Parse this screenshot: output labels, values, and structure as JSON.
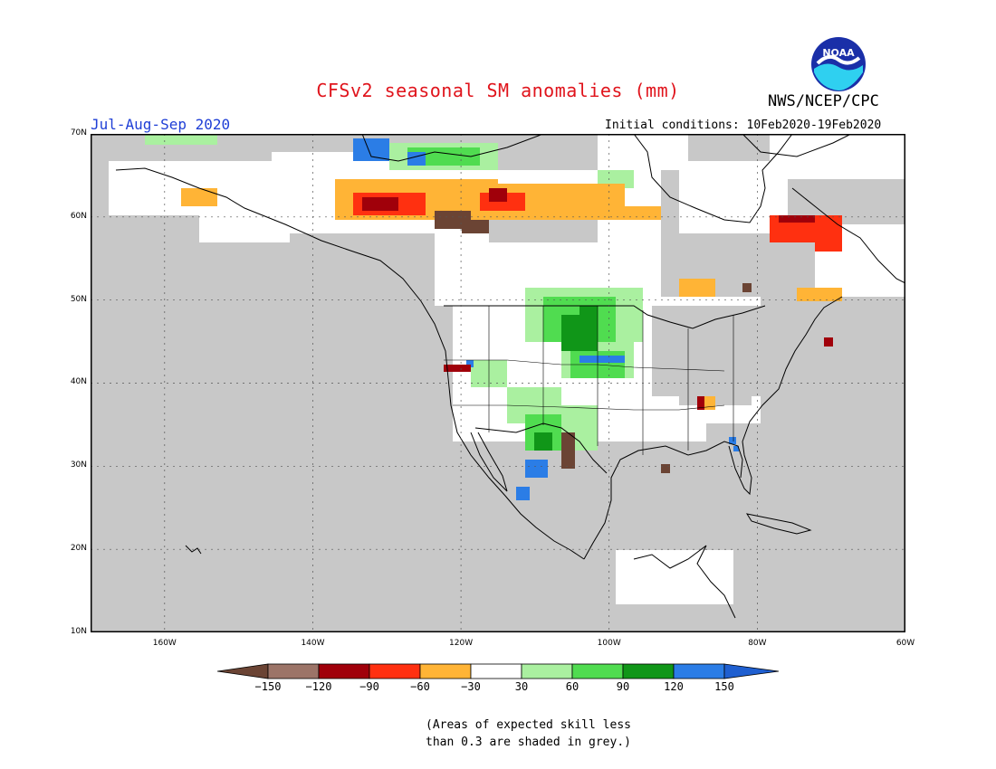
{
  "title": "CFSv2 seasonal SM anomalies (mm)",
  "period": "Jul-Aug-Sep 2020",
  "agency": "NWS/NCEP/CPC",
  "initial_conditions": "Initial conditions: 10Feb2020-19Feb2020",
  "logo_text": "NOAA",
  "logo_icon": "noaa-logo-icon",
  "lat_labels": [
    "70N",
    "60N",
    "50N",
    "40N",
    "30N",
    "20N",
    "10N"
  ],
  "lon_labels": [
    "160W",
    "140W",
    "120W",
    "100W",
    "80W",
    "60W"
  ],
  "colorbar": {
    "labels": [
      "-150",
      "-120",
      "-90",
      "-60",
      "-30",
      "30",
      "60",
      "90",
      "120",
      "150"
    ],
    "colors": [
      "#6b4434",
      "#9c7468",
      "#a0000a",
      "#ff3010",
      "#ffb436",
      "#ffffff",
      "#aaf0a0",
      "#50dc50",
      "#109618",
      "#2b7de6",
      "#1f5fd0"
    ]
  },
  "note": "(Areas of expected skill less\nthan 0.3 are shaded in grey.)",
  "colors": {
    "title": "#e0141c",
    "period": "#1f3fd6",
    "land_grey": "#c8c8c8",
    "ocean": "#c8c8c8"
  }
}
